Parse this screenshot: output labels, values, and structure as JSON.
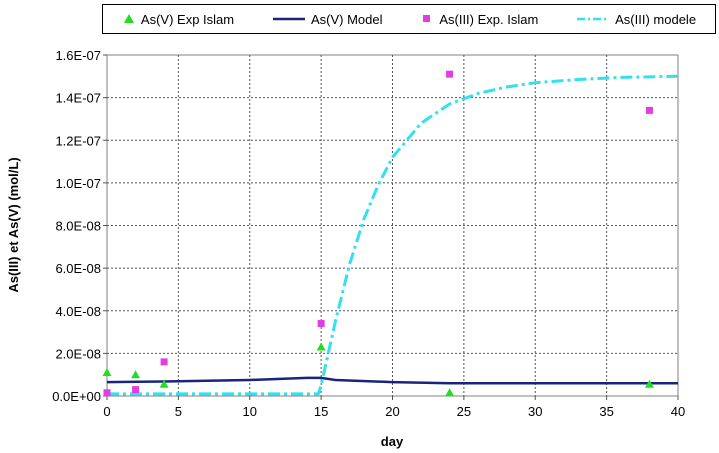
{
  "chart_data": {
    "type": "scatter",
    "xlabel": "day",
    "ylabel": "As(III) et As(V) (mol/L)",
    "xlim": [
      0,
      40
    ],
    "ylim": [
      0,
      1.6e-07
    ],
    "x_ticks": [
      "0",
      "5",
      "10",
      "15",
      "20",
      "25",
      "30",
      "35",
      "40"
    ],
    "y_ticks": [
      "0.0E+00",
      "2.0E-08",
      "4.0E-08",
      "6.0E-08",
      "8.0E-08",
      "1.0E-07",
      "1.2E-07",
      "1.4E-07",
      "1.6E-07"
    ],
    "grid": true,
    "legend_position": "top",
    "series": [
      {
        "name": "As(V) Exp Islam",
        "kind": "marker",
        "marker": "triangle",
        "color": "#22dd22",
        "points": [
          [
            0,
            1.1e-08
          ],
          [
            2,
            1e-08
          ],
          [
            4,
            5.5e-09
          ],
          [
            15,
            2.3e-08
          ],
          [
            24,
            1.5e-09
          ],
          [
            38,
            5.5e-09
          ]
        ]
      },
      {
        "name": "As(V) Model",
        "kind": "line",
        "dash": "solid",
        "color": "#1a237e",
        "points": [
          [
            0,
            6.5e-09
          ],
          [
            4,
            6.8e-09
          ],
          [
            10,
            7.5e-09
          ],
          [
            14,
            8.5e-09
          ],
          [
            15,
            8.5e-09
          ],
          [
            16,
            7.5e-09
          ],
          [
            20,
            6.5e-09
          ],
          [
            24,
            6e-09
          ],
          [
            30,
            6e-09
          ],
          [
            40,
            6e-09
          ]
        ]
      },
      {
        "name": "As(III) Exp. Islam",
        "kind": "marker",
        "marker": "square",
        "color": "#e23ce2",
        "points": [
          [
            0,
            1.5e-09
          ],
          [
            2,
            3e-09
          ],
          [
            4,
            1.6e-08
          ],
          [
            15,
            3.4e-08
          ],
          [
            24,
            1.51e-07
          ],
          [
            38,
            1.34e-07
          ]
        ]
      },
      {
        "name": "As(III) modele",
        "kind": "line",
        "dash": "dashdot",
        "color": "#33e0ee",
        "points": [
          [
            0,
            1e-09
          ],
          [
            10,
            1e-09
          ],
          [
            14.8,
            1e-09
          ],
          [
            15,
            5e-09
          ],
          [
            16,
            3.5e-08
          ],
          [
            17,
            6.2e-08
          ],
          [
            18,
            8.3e-08
          ],
          [
            19,
            9.9e-08
          ],
          [
            20,
            1.12e-07
          ],
          [
            22,
            1.28e-07
          ],
          [
            24,
            1.37e-07
          ],
          [
            26,
            1.42e-07
          ],
          [
            28,
            1.45e-07
          ],
          [
            30,
            1.47e-07
          ],
          [
            33,
            1.485e-07
          ],
          [
            36,
            1.495e-07
          ],
          [
            40,
            1.5e-07
          ]
        ]
      }
    ]
  }
}
